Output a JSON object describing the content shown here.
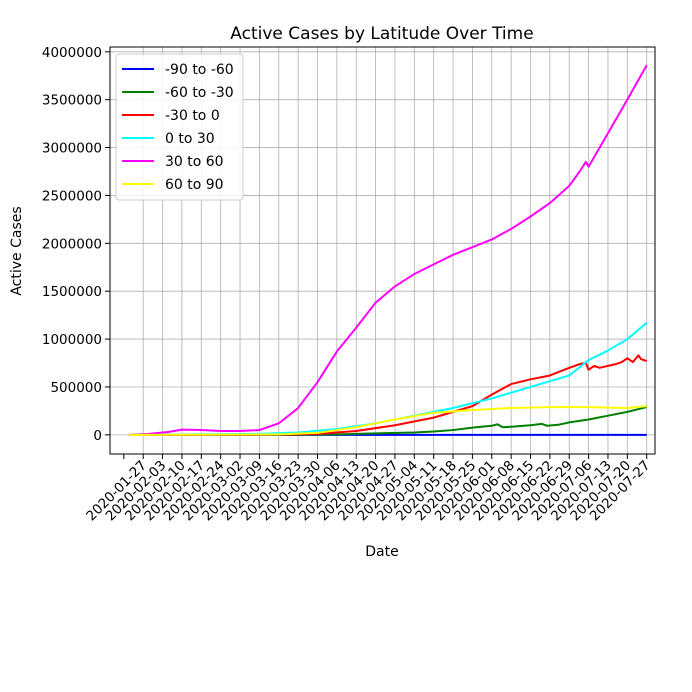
{
  "chart_data": {
    "type": "line",
    "title": "Active Cases by Latitude Over Time",
    "xlabel": "Date",
    "ylabel": "Active Cases",
    "xlim": [
      "2020-01-15",
      "2020-07-30"
    ],
    "ylim": [
      -200000,
      4050000
    ],
    "grid": true,
    "legend_position": "upper-left",
    "x_ticks": [
      "2020-01-27",
      "2020-02-03",
      "2020-02-10",
      "2020-02-17",
      "2020-02-24",
      "2020-03-02",
      "2020-03-09",
      "2020-03-16",
      "2020-03-23",
      "2020-03-30",
      "2020-04-06",
      "2020-04-13",
      "2020-04-20",
      "2020-04-27",
      "2020-05-04",
      "2020-05-11",
      "2020-05-18",
      "2020-05-25",
      "2020-06-01",
      "2020-06-08",
      "2020-06-15",
      "2020-06-22",
      "2020-06-29",
      "2020-07-06",
      "2020-07-13",
      "2020-07-20",
      "2020-07-27"
    ],
    "y_ticks": [
      0,
      500000,
      1000000,
      1500000,
      2000000,
      2500000,
      3000000,
      3500000,
      4000000
    ],
    "series": [
      {
        "name": "-90 to -60",
        "color": "#0000ff",
        "points": [
          [
            "2020-01-22",
            0
          ],
          [
            "2020-07-27",
            0
          ]
        ]
      },
      {
        "name": "-60 to -30",
        "color": "#008000",
        "points": [
          [
            "2020-01-22",
            0
          ],
          [
            "2020-03-23",
            1000
          ],
          [
            "2020-04-06",
            5000
          ],
          [
            "2020-04-20",
            15000
          ],
          [
            "2020-05-04",
            25000
          ],
          [
            "2020-05-11",
            35000
          ],
          [
            "2020-05-18",
            50000
          ],
          [
            "2020-05-25",
            75000
          ],
          [
            "2020-06-01",
            95000
          ],
          [
            "2020-06-03",
            110000
          ],
          [
            "2020-06-05",
            80000
          ],
          [
            "2020-06-08",
            85000
          ],
          [
            "2020-06-15",
            100000
          ],
          [
            "2020-06-19",
            115000
          ],
          [
            "2020-06-21",
            95000
          ],
          [
            "2020-06-25",
            105000
          ],
          [
            "2020-06-29",
            130000
          ],
          [
            "2020-07-06",
            160000
          ],
          [
            "2020-07-13",
            200000
          ],
          [
            "2020-07-20",
            240000
          ],
          [
            "2020-07-27",
            290000
          ]
        ]
      },
      {
        "name": "-30 to 0",
        "color": "#ff0000",
        "points": [
          [
            "2020-01-22",
            0
          ],
          [
            "2020-03-16",
            2000
          ],
          [
            "2020-03-30",
            10000
          ],
          [
            "2020-04-13",
            40000
          ],
          [
            "2020-04-27",
            100000
          ],
          [
            "2020-05-11",
            180000
          ],
          [
            "2020-05-18",
            240000
          ],
          [
            "2020-05-25",
            300000
          ],
          [
            "2020-06-01",
            420000
          ],
          [
            "2020-06-06",
            500000
          ],
          [
            "2020-06-08",
            530000
          ],
          [
            "2020-06-15",
            580000
          ],
          [
            "2020-06-22",
            620000
          ],
          [
            "2020-06-29",
            700000
          ],
          [
            "2020-07-03",
            740000
          ],
          [
            "2020-07-05",
            750000
          ],
          [
            "2020-07-06",
            680000
          ],
          [
            "2020-07-08",
            720000
          ],
          [
            "2020-07-10",
            700000
          ],
          [
            "2020-07-13",
            720000
          ],
          [
            "2020-07-16",
            740000
          ],
          [
            "2020-07-18",
            760000
          ],
          [
            "2020-07-20",
            800000
          ],
          [
            "2020-07-22",
            760000
          ],
          [
            "2020-07-24",
            830000
          ],
          [
            "2020-07-25",
            790000
          ],
          [
            "2020-07-27",
            770000
          ]
        ]
      },
      {
        "name": "0 to 30",
        "color": "#00ffff",
        "points": [
          [
            "2020-01-22",
            0
          ],
          [
            "2020-03-09",
            10000
          ],
          [
            "2020-03-23",
            25000
          ],
          [
            "2020-04-06",
            60000
          ],
          [
            "2020-04-20",
            120000
          ],
          [
            "2020-05-04",
            200000
          ],
          [
            "2020-05-18",
            280000
          ],
          [
            "2020-06-01",
            380000
          ],
          [
            "2020-06-15",
            500000
          ],
          [
            "2020-06-29",
            620000
          ],
          [
            "2020-07-06",
            780000
          ],
          [
            "2020-07-13",
            880000
          ],
          [
            "2020-07-20",
            1000000
          ],
          [
            "2020-07-27",
            1170000
          ]
        ]
      },
      {
        "name": "30 to 60",
        "color": "#ff00ff",
        "points": [
          [
            "2020-01-22",
            0
          ],
          [
            "2020-01-29",
            10000
          ],
          [
            "2020-02-05",
            30000
          ],
          [
            "2020-02-10",
            55000
          ],
          [
            "2020-02-17",
            50000
          ],
          [
            "2020-02-24",
            40000
          ],
          [
            "2020-03-02",
            40000
          ],
          [
            "2020-03-09",
            50000
          ],
          [
            "2020-03-16",
            120000
          ],
          [
            "2020-03-23",
            280000
          ],
          [
            "2020-03-30",
            550000
          ],
          [
            "2020-04-06",
            870000
          ],
          [
            "2020-04-13",
            1120000
          ],
          [
            "2020-04-20",
            1380000
          ],
          [
            "2020-04-27",
            1550000
          ],
          [
            "2020-05-04",
            1680000
          ],
          [
            "2020-05-11",
            1780000
          ],
          [
            "2020-05-18",
            1880000
          ],
          [
            "2020-05-25",
            1960000
          ],
          [
            "2020-06-01",
            2040000
          ],
          [
            "2020-06-08",
            2150000
          ],
          [
            "2020-06-15",
            2280000
          ],
          [
            "2020-06-22",
            2420000
          ],
          [
            "2020-06-29",
            2600000
          ],
          [
            "2020-07-03",
            2760000
          ],
          [
            "2020-07-05",
            2850000
          ],
          [
            "2020-07-06",
            2800000
          ],
          [
            "2020-07-09",
            2950000
          ],
          [
            "2020-07-13",
            3150000
          ],
          [
            "2020-07-20",
            3500000
          ],
          [
            "2020-07-27",
            3860000
          ]
        ]
      },
      {
        "name": "60 to 90",
        "color": "#ffff00",
        "points": [
          [
            "2020-01-22",
            0
          ],
          [
            "2020-03-16",
            5000
          ],
          [
            "2020-03-30",
            20000
          ],
          [
            "2020-04-13",
            80000
          ],
          [
            "2020-04-27",
            160000
          ],
          [
            "2020-05-11",
            230000
          ],
          [
            "2020-05-25",
            260000
          ],
          [
            "2020-06-08",
            280000
          ],
          [
            "2020-06-22",
            290000
          ],
          [
            "2020-07-06",
            290000
          ],
          [
            "2020-07-20",
            280000
          ],
          [
            "2020-07-27",
            300000
          ]
        ]
      }
    ]
  }
}
